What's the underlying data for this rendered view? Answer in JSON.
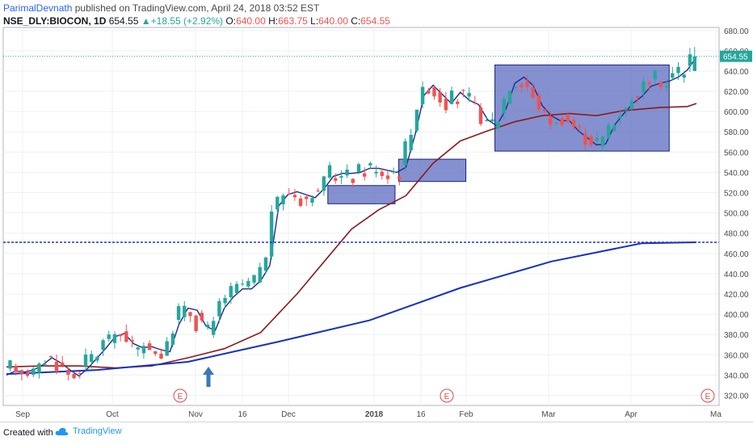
{
  "header": {
    "author": "ParimalDevnath",
    "published": "published on TradingView.com, April 24, 2018 03:52 EST",
    "symbol": "NSE_DLY:BIOCON, 1D",
    "last": "654.55",
    "change": "+18.55 (+2.92%)",
    "change_arrow": "▲",
    "o_label": "O:",
    "o_val": "640.00",
    "h_label": "H:",
    "h_val": "663.75",
    "l_label": "L:",
    "l_val": "640.00",
    "c_label": "C:",
    "c_val": "654.55"
  },
  "footer": {
    "created": "Created with",
    "brand": "TradingView"
  },
  "colors": {
    "up": "#26a69a",
    "down": "#ef5350",
    "ema_fast": "#1f2a8c",
    "ema_mid": "#8b1a1a",
    "ema_slow": "#1530c4",
    "box_fill": "#5c6bc0",
    "box_stroke": "#1a237e",
    "hline": "#1a35d6",
    "last_line": "#26a69a",
    "arrow": "#3a78b8",
    "event": "#e04848"
  },
  "chart_data": {
    "type": "candlestick",
    "y_axis_labels": [
      320,
      340,
      360,
      380,
      400,
      420,
      440,
      460,
      480,
      500,
      520,
      540,
      560,
      580,
      600,
      620,
      640,
      660,
      680
    ],
    "y_range": [
      310,
      683
    ],
    "x_labels": [
      "Sep",
      "Oct",
      "Nov",
      "16",
      "Dec",
      "2018",
      "16",
      "Feb",
      "Mar",
      "Apr",
      "Ma"
    ],
    "x_label_bold": [
      "2018"
    ],
    "last_price_label": "654.55",
    "last_price": 654.55,
    "horizontal_line": 471,
    "earnings_marker": "E",
    "earnings_count": 3,
    "boxes": [
      {
        "from_date": "Dec 4",
        "to_date": "Dec 22",
        "low": 509,
        "high": 527
      },
      {
        "from_date": "Dec 24",
        "to_date": "Jan 10",
        "low": 531,
        "high": 553
      },
      {
        "from_date": "Jan 22",
        "to_date": "Apr 24",
        "low": 561,
        "high": 646
      }
    ],
    "arrow_marker": "Nov 5",
    "series": [
      {
        "points": [
          [
            0,
            340
          ],
          [
            5,
            344
          ],
          [
            10,
            343
          ],
          [
            15,
            345
          ],
          [
            20,
            350
          ],
          [
            25,
            357
          ],
          [
            30,
            352
          ],
          [
            35,
            345
          ],
          [
            40,
            339
          ],
          [
            45,
            347
          ],
          [
            50,
            357
          ],
          [
            55,
            367
          ],
          [
            60,
            378
          ],
          [
            65,
            381
          ],
          [
            70,
            371
          ],
          [
            75,
            367
          ],
          [
            80,
            368
          ],
          [
            85,
            365
          ],
          [
            90,
            363
          ],
          [
            95,
            390
          ],
          [
            100,
            406
          ],
          [
            105,
            404
          ],
          [
            110,
            388
          ],
          [
            115,
            384
          ],
          [
            120,
            406
          ],
          [
            125,
            417
          ],
          [
            130,
            425
          ],
          [
            135,
            425
          ],
          [
            140,
            433
          ],
          [
            145,
            448
          ],
          [
            150,
            507
          ],
          [
            155,
            518
          ],
          [
            160,
            521
          ],
          [
            165,
            518
          ],
          [
            170,
            515
          ],
          [
            175,
            524
          ],
          [
            180,
            536
          ],
          [
            185,
            539
          ],
          [
            190,
            539
          ],
          [
            195,
            540
          ],
          [
            200,
            544
          ],
          [
            205,
            544
          ],
          [
            210,
            542
          ],
          [
            215,
            540
          ],
          [
            220,
            545
          ],
          [
            225,
            577
          ],
          [
            230,
            616
          ],
          [
            235,
            626
          ],
          [
            240,
            617
          ],
          [
            245,
            608
          ],
          [
            250,
            619
          ],
          [
            255,
            611
          ],
          [
            260,
            607
          ],
          [
            265,
            592
          ],
          [
            270,
            586
          ],
          [
            275,
            602
          ],
          [
            280,
            628
          ],
          [
            285,
            634
          ],
          [
            290,
            626
          ],
          [
            295,
            606
          ],
          [
            300,
            596
          ],
          [
            305,
            591
          ],
          [
            310,
            591
          ],
          [
            315,
            581
          ],
          [
            320,
            574
          ],
          [
            325,
            567
          ],
          [
            330,
            568
          ],
          [
            335,
            587
          ],
          [
            340,
            598
          ],
          [
            345,
            608
          ],
          [
            350,
            615
          ],
          [
            355,
            625
          ],
          [
            360,
            628
          ],
          [
            365,
            630
          ],
          [
            370,
            634
          ],
          [
            375,
            641
          ],
          [
            380,
            654
          ]
        ]
      },
      {
        "points": [
          [
            0,
            348
          ],
          [
            20,
            349
          ],
          [
            40,
            349
          ],
          [
            60,
            347
          ],
          [
            80,
            349
          ],
          [
            100,
            357
          ],
          [
            120,
            366
          ],
          [
            140,
            382
          ],
          [
            160,
            420
          ],
          [
            175,
            452
          ],
          [
            190,
            484
          ],
          [
            205,
            503
          ],
          [
            220,
            517
          ],
          [
            235,
            549
          ],
          [
            250,
            571
          ],
          [
            265,
            581
          ],
          [
            280,
            590
          ],
          [
            295,
            596
          ],
          [
            310,
            598
          ],
          [
            325,
            596
          ],
          [
            340,
            601
          ],
          [
            360,
            604
          ],
          [
            375,
            605
          ],
          [
            380,
            608
          ]
        ]
      },
      {
        "points": [
          [
            0,
            341
          ],
          [
            50,
            345
          ],
          [
            100,
            353
          ],
          [
            150,
            373
          ],
          [
            200,
            394
          ],
          [
            250,
            426
          ],
          [
            300,
            452
          ],
          [
            350,
            470
          ],
          [
            380,
            471
          ]
        ]
      }
    ]
  }
}
